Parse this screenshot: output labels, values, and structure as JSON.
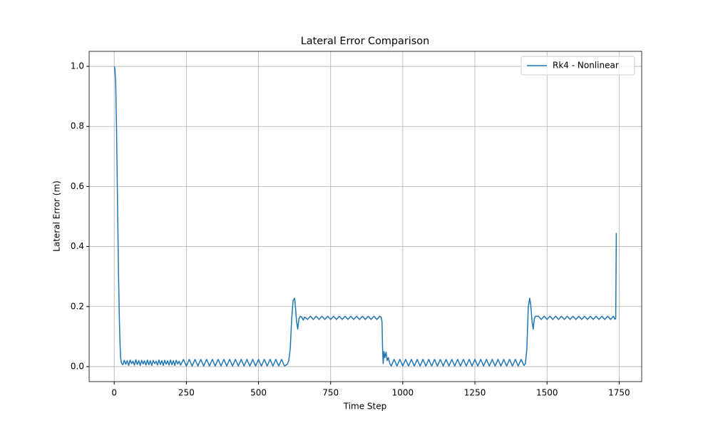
{
  "chart_data": {
    "type": "line",
    "title": "Lateral Error Comparison",
    "x_label": "Time Step",
    "y_label": "Lateral Error (m)",
    "legend": "upper right",
    "grid": true,
    "xlim": [
      -87,
      1828
    ],
    "ylim": [
      -0.05,
      1.05
    ],
    "xticks": [
      0,
      250,
      500,
      750,
      1000,
      1250,
      1500,
      1750
    ],
    "yticks": [
      {
        "value": 0,
        "label": "0.0"
      },
      0.2,
      0.4,
      0.6,
      0.8,
      {
        "value": 1,
        "label": "1.0"
      }
    ],
    "series": [
      {
        "name": "Rk4 - Nonlinear",
        "color": "#1f77b4",
        "x": [
          0,
          2,
          5,
          8,
          10,
          12,
          15,
          18,
          20,
          22,
          25,
          30,
          35,
          40,
          45,
          50,
          55,
          60,
          65,
          70,
          75,
          80,
          85,
          90,
          95,
          100,
          105,
          110,
          115,
          120,
          125,
          130,
          135,
          140,
          145,
          150,
          155,
          160,
          165,
          170,
          175,
          180,
          185,
          190,
          195,
          200,
          205,
          210,
          215,
          220,
          225,
          230,
          240,
          250,
          260,
          270,
          280,
          290,
          300,
          310,
          320,
          330,
          340,
          350,
          360,
          370,
          380,
          390,
          400,
          410,
          420,
          430,
          440,
          450,
          460,
          470,
          480,
          490,
          500,
          510,
          520,
          530,
          540,
          550,
          560,
          570,
          580,
          590,
          600,
          605,
          610,
          615,
          620,
          625,
          628,
          632,
          636,
          640,
          645,
          650,
          655,
          660,
          670,
          680,
          690,
          700,
          710,
          720,
          730,
          740,
          750,
          760,
          770,
          780,
          790,
          800,
          810,
          820,
          830,
          840,
          850,
          860,
          870,
          880,
          890,
          900,
          910,
          920,
          925,
          928,
          930,
          932,
          935,
          938,
          942,
          946,
          950,
          955,
          960,
          970,
          980,
          990,
          1000,
          1010,
          1020,
          1030,
          1040,
          1050,
          1060,
          1070,
          1080,
          1090,
          1100,
          1110,
          1120,
          1130,
          1140,
          1150,
          1160,
          1170,
          1180,
          1190,
          1200,
          1210,
          1220,
          1230,
          1240,
          1250,
          1260,
          1270,
          1280,
          1290,
          1300,
          1310,
          1320,
          1330,
          1340,
          1350,
          1360,
          1370,
          1380,
          1390,
          1400,
          1410,
          1420,
          1425,
          1430,
          1435,
          1440,
          1444,
          1448,
          1452,
          1456,
          1460,
          1470,
          1480,
          1490,
          1500,
          1510,
          1520,
          1530,
          1540,
          1550,
          1560,
          1570,
          1580,
          1590,
          1600,
          1610,
          1620,
          1630,
          1640,
          1650,
          1660,
          1670,
          1680,
          1690,
          1700,
          1710,
          1720,
          1730,
          1735,
          1738,
          1740
        ],
        "values": [
          1.0,
          0.995,
          0.95,
          0.8,
          0.65,
          0.5,
          0.3,
          0.15,
          0.08,
          0.03,
          0.012,
          0.006,
          0.021,
          0.008,
          0.02,
          0.004,
          0.022,
          0.01,
          0.018,
          0.005,
          0.023,
          0.007,
          0.02,
          0.004,
          0.021,
          0.009,
          0.019,
          0.005,
          0.022,
          0.006,
          0.02,
          0.004,
          0.021,
          0.01,
          0.018,
          0.005,
          0.022,
          0.007,
          0.02,
          0.004,
          0.021,
          0.008,
          0.019,
          0.005,
          0.022,
          0.006,
          0.02,
          0.004,
          0.021,
          0.009,
          0.018,
          0.005,
          0.024,
          0.002,
          0.024,
          0.002,
          0.024,
          0.002,
          0.024,
          0.002,
          0.024,
          0.002,
          0.024,
          0.002,
          0.024,
          0.002,
          0.024,
          0.002,
          0.024,
          0.002,
          0.024,
          0.002,
          0.024,
          0.002,
          0.024,
          0.002,
          0.024,
          0.002,
          0.024,
          0.002,
          0.024,
          0.002,
          0.024,
          0.002,
          0.024,
          0.002,
          0.024,
          0.002,
          0.008,
          0.02,
          0.06,
          0.16,
          0.22,
          0.228,
          0.2,
          0.15,
          0.125,
          0.16,
          0.168,
          0.165,
          0.155,
          0.165,
          0.157,
          0.168,
          0.157,
          0.168,
          0.157,
          0.168,
          0.157,
          0.168,
          0.157,
          0.168,
          0.157,
          0.168,
          0.157,
          0.168,
          0.157,
          0.168,
          0.157,
          0.168,
          0.157,
          0.168,
          0.157,
          0.168,
          0.157,
          0.168,
          0.157,
          0.168,
          0.165,
          0.15,
          0.06,
          0.01,
          0.05,
          0.03,
          0.048,
          0.02,
          0.03,
          0.01,
          0.002,
          0.024,
          0.002,
          0.024,
          0.002,
          0.024,
          0.002,
          0.024,
          0.002,
          0.024,
          0.002,
          0.024,
          0.002,
          0.024,
          0.002,
          0.024,
          0.002,
          0.024,
          0.002,
          0.024,
          0.002,
          0.024,
          0.002,
          0.024,
          0.002,
          0.024,
          0.002,
          0.024,
          0.002,
          0.024,
          0.002,
          0.024,
          0.002,
          0.024,
          0.002,
          0.024,
          0.002,
          0.024,
          0.002,
          0.024,
          0.002,
          0.024,
          0.002,
          0.024,
          0.002,
          0.024,
          0.004,
          0.01,
          0.06,
          0.2,
          0.228,
          0.2,
          0.15,
          0.125,
          0.16,
          0.168,
          0.168,
          0.157,
          0.168,
          0.157,
          0.168,
          0.157,
          0.168,
          0.157,
          0.168,
          0.157,
          0.168,
          0.157,
          0.168,
          0.157,
          0.168,
          0.157,
          0.168,
          0.157,
          0.168,
          0.157,
          0.168,
          0.157,
          0.168,
          0.157,
          0.168,
          0.157,
          0.168,
          0.158,
          0.16,
          0.445
        ]
      }
    ]
  }
}
